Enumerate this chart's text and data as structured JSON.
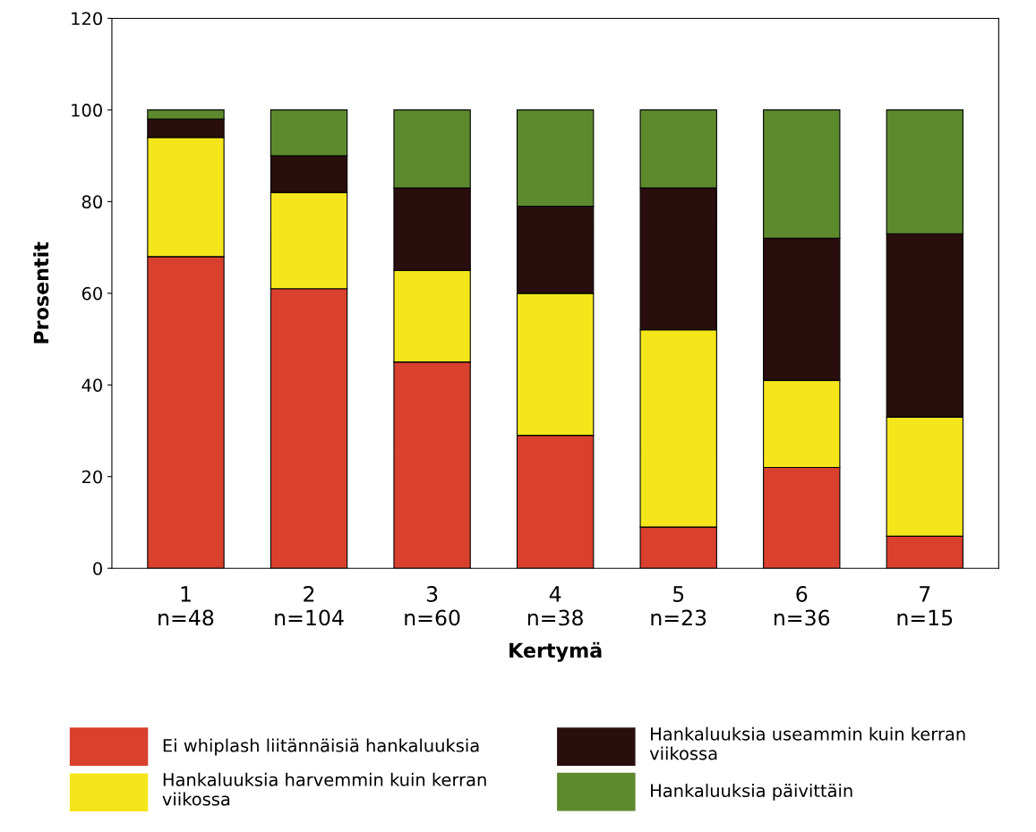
{
  "chart_data": {
    "type": "bar",
    "stacked": true,
    "xlabel": "Kertymä",
    "ylabel": "Prosentit",
    "categories": [
      "1\nn=48",
      "2\nn=104",
      "3\nn=60",
      "4\nn=38",
      "5\nn=23",
      "6\nn=36",
      "7\nn=15"
    ],
    "series": [
      {
        "name": "Ei whiplash liitännäisiä hankaluuksia",
        "color": "#d9402e",
        "values": [
          68,
          61,
          45,
          29,
          9,
          22,
          7
        ]
      },
      {
        "name": "Hankaluuksia harvemmin kuin kerran\nviikossa",
        "color": "#f5e61c",
        "values": [
          26,
          21,
          20,
          31,
          43,
          19,
          26
        ]
      },
      {
        "name": "Hankaluuksia useammin kuin kerran\nviikossa",
        "color": "#2a0d0d",
        "values": [
          4,
          8,
          18,
          19,
          31,
          31,
          40
        ]
      },
      {
        "name": "Hankaluuksia päivittäin",
        "color": "#5e8a2e",
        "values": [
          2,
          10,
          17,
          21,
          17,
          28,
          27
        ]
      }
    ],
    "ylim": [
      0,
      120
    ],
    "yticks": [
      0,
      20,
      40,
      60,
      80,
      100,
      120
    ],
    "grid": false,
    "legend": "bottom"
  }
}
